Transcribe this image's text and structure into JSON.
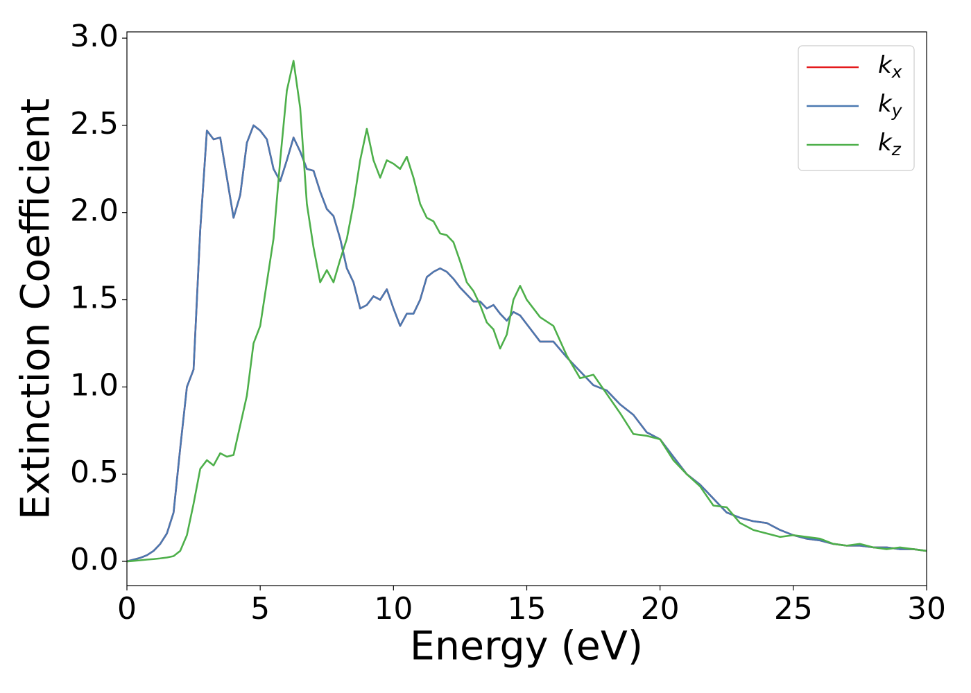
{
  "chart_data": {
    "type": "line",
    "xlabel": "Energy (eV)",
    "ylabel": "Extinction Coefficient",
    "x": [
      0,
      0.25,
      0.5,
      0.75,
      1,
      1.25,
      1.5,
      1.75,
      2,
      2.25,
      2.5,
      2.75,
      3,
      3.25,
      3.5,
      3.75,
      4,
      4.25,
      4.5,
      4.75,
      5,
      5.25,
      5.5,
      5.75,
      6,
      6.25,
      6.5,
      6.75,
      7,
      7.25,
      7.5,
      7.75,
      8,
      8.25,
      8.5,
      8.75,
      9,
      9.25,
      9.5,
      9.75,
      10,
      10.25,
      10.5,
      10.75,
      11,
      11.25,
      11.5,
      11.75,
      12,
      12.25,
      12.5,
      12.75,
      13,
      13.25,
      13.5,
      13.75,
      14,
      14.25,
      14.5,
      14.75,
      15,
      15.5,
      16,
      16.5,
      17,
      17.5,
      18,
      18.5,
      19,
      19.5,
      20,
      20.5,
      21,
      21.5,
      22,
      22.5,
      23,
      23.5,
      24,
      24.5,
      25,
      25.5,
      26,
      26.5,
      27,
      27.5,
      28,
      28.5,
      29,
      29.5,
      30
    ],
    "series": [
      {
        "name": "kx",
        "color": "#e41a1c",
        "values": [
          0,
          0.01,
          0.02,
          0.035,
          0.06,
          0.1,
          0.16,
          0.28,
          0.65,
          1.0,
          1.1,
          1.9,
          2.47,
          2.42,
          2.43,
          2.2,
          1.97,
          2.1,
          2.4,
          2.5,
          2.47,
          2.42,
          2.25,
          2.18,
          2.3,
          2.43,
          2.35,
          2.25,
          2.24,
          2.12,
          2.02,
          1.98,
          1.85,
          1.68,
          1.6,
          1.45,
          1.47,
          1.52,
          1.5,
          1.56,
          1.45,
          1.35,
          1.42,
          1.42,
          1.5,
          1.63,
          1.66,
          1.68,
          1.66,
          1.62,
          1.57,
          1.53,
          1.49,
          1.49,
          1.45,
          1.47,
          1.42,
          1.38,
          1.43,
          1.41,
          1.36,
          1.26,
          1.26,
          1.17,
          1.09,
          1.01,
          0.98,
          0.9,
          0.84,
          0.74,
          0.7,
          0.6,
          0.5,
          0.44,
          0.36,
          0.28,
          0.25,
          0.23,
          0.22,
          0.18,
          0.15,
          0.13,
          0.12,
          0.1,
          0.09,
          0.09,
          0.08,
          0.08,
          0.07,
          0.07,
          0.06
        ]
      },
      {
        "name": "ky",
        "color": "#4a78b0",
        "values": [
          0,
          0.01,
          0.02,
          0.035,
          0.06,
          0.1,
          0.16,
          0.28,
          0.65,
          1.0,
          1.1,
          1.9,
          2.47,
          2.42,
          2.43,
          2.2,
          1.97,
          2.1,
          2.4,
          2.5,
          2.47,
          2.42,
          2.25,
          2.18,
          2.3,
          2.43,
          2.35,
          2.25,
          2.24,
          2.12,
          2.02,
          1.98,
          1.85,
          1.68,
          1.6,
          1.45,
          1.47,
          1.52,
          1.5,
          1.56,
          1.45,
          1.35,
          1.42,
          1.42,
          1.5,
          1.63,
          1.66,
          1.68,
          1.66,
          1.62,
          1.57,
          1.53,
          1.49,
          1.49,
          1.45,
          1.47,
          1.42,
          1.38,
          1.43,
          1.41,
          1.36,
          1.26,
          1.26,
          1.17,
          1.09,
          1.01,
          0.98,
          0.9,
          0.84,
          0.74,
          0.7,
          0.6,
          0.5,
          0.44,
          0.36,
          0.28,
          0.25,
          0.23,
          0.22,
          0.18,
          0.15,
          0.13,
          0.12,
          0.1,
          0.09,
          0.09,
          0.08,
          0.08,
          0.07,
          0.07,
          0.06
        ]
      },
      {
        "name": "kz",
        "color": "#4daf4a",
        "values": [
          0,
          0.003,
          0.006,
          0.01,
          0.013,
          0.017,
          0.022,
          0.03,
          0.06,
          0.15,
          0.33,
          0.53,
          0.58,
          0.55,
          0.62,
          0.6,
          0.61,
          0.78,
          0.95,
          1.25,
          1.35,
          1.6,
          1.85,
          2.3,
          2.7,
          2.87,
          2.6,
          2.05,
          1.8,
          1.6,
          1.67,
          1.6,
          1.73,
          1.85,
          2.05,
          2.3,
          2.48,
          2.3,
          2.2,
          2.3,
          2.28,
          2.25,
          2.32,
          2.2,
          2.05,
          1.97,
          1.95,
          1.88,
          1.87,
          1.83,
          1.72,
          1.6,
          1.55,
          1.47,
          1.37,
          1.33,
          1.22,
          1.3,
          1.5,
          1.58,
          1.5,
          1.4,
          1.35,
          1.18,
          1.05,
          1.07,
          0.96,
          0.85,
          0.73,
          0.72,
          0.7,
          0.58,
          0.5,
          0.43,
          0.32,
          0.31,
          0.22,
          0.18,
          0.16,
          0.14,
          0.15,
          0.14,
          0.13,
          0.1,
          0.09,
          0.1,
          0.08,
          0.07,
          0.08,
          0.07,
          0.06
        ]
      }
    ],
    "xlim": [
      0,
      30
    ],
    "xticks": [
      0,
      5,
      10,
      15,
      20,
      25,
      30
    ],
    "ylim": [
      -0.139,
      3.036
    ],
    "yticks": [
      {
        "value": 0,
        "label": "0.0"
      },
      0.5,
      {
        "value": 1,
        "label": "1.0"
      },
      1.5,
      {
        "value": 2,
        "label": "2.0"
      },
      2.5,
      {
        "value": 3,
        "label": "3.0"
      }
    ],
    "grid": false,
    "legend": "upper right"
  }
}
